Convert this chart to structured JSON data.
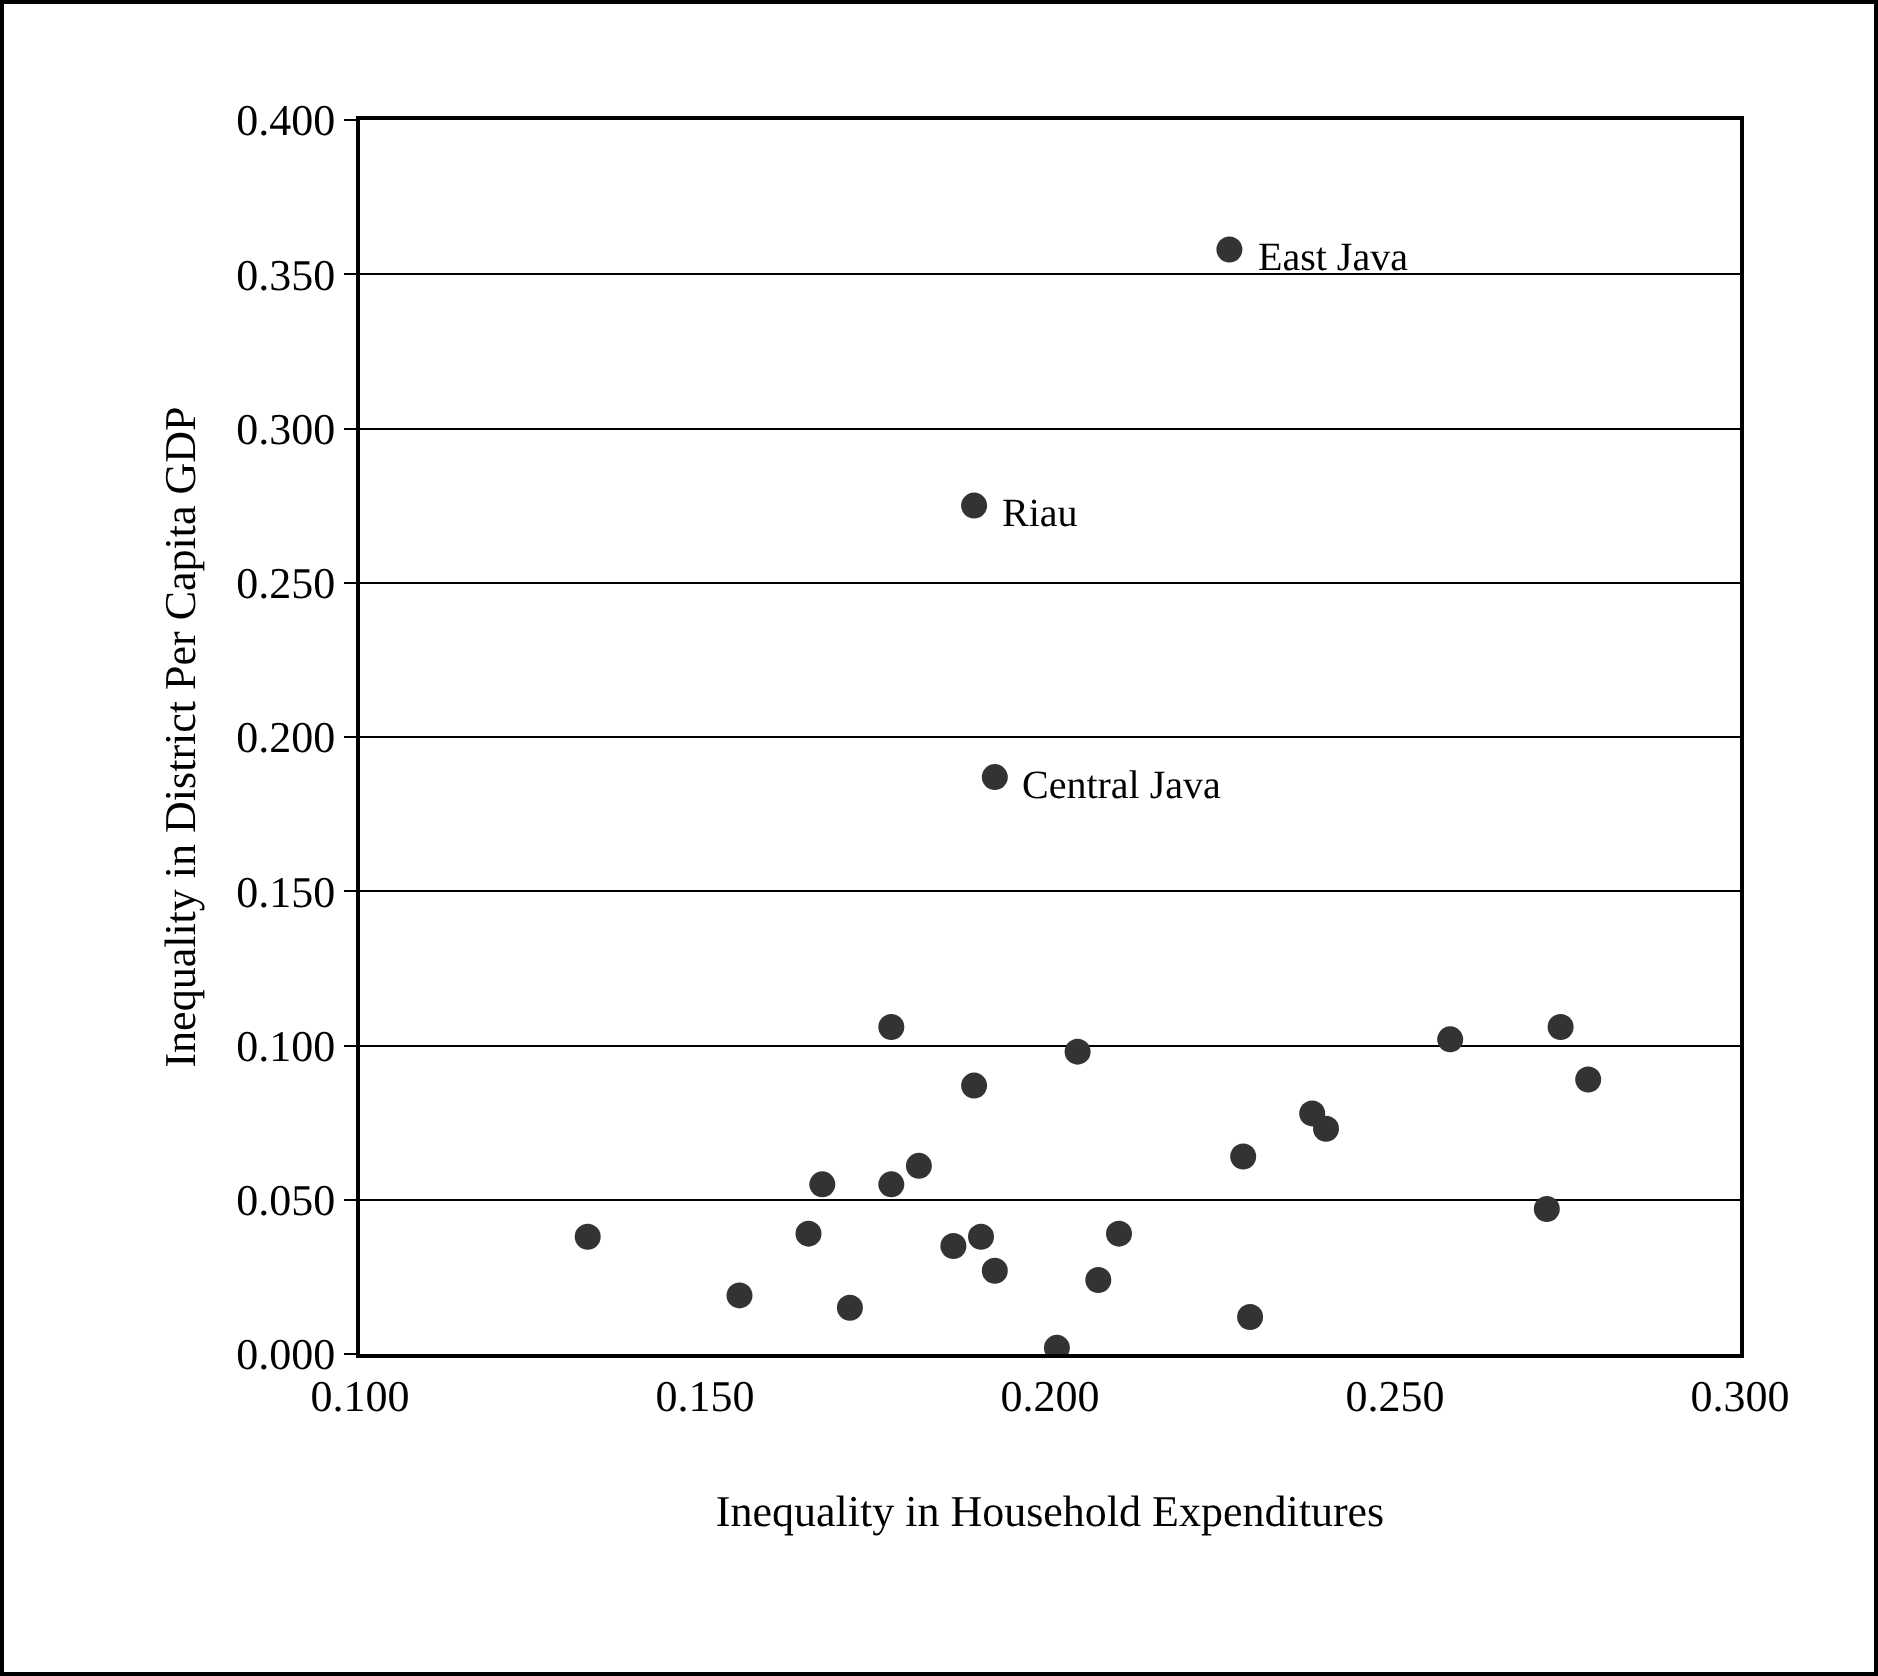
{
  "chart_data": {
    "type": "scatter",
    "xlabel": "Inequality in Household Expenditures",
    "ylabel": "Inequality in District Per Capita GDP",
    "x": [
      0.133,
      0.155,
      0.165,
      0.167,
      0.171,
      0.177,
      0.177,
      0.181,
      0.186,
      0.19,
      0.192,
      0.189,
      0.189,
      0.192,
      0.201,
      0.204,
      0.207,
      0.21,
      0.226,
      0.228,
      0.229,
      0.238,
      0.24,
      0.258,
      0.272,
      0.274,
      0.278
    ],
    "values": [
      0.038,
      0.019,
      0.039,
      0.055,
      0.015,
      0.055,
      0.106,
      0.061,
      0.035,
      0.038,
      0.027,
      0.087,
      0.275,
      0.187,
      0.002,
      0.098,
      0.024,
      0.039,
      0.358,
      0.064,
      0.012,
      0.078,
      0.073,
      0.102,
      0.047,
      0.106,
      0.089
    ],
    "color": "#333333",
    "marker": "circle",
    "xlim": [
      0.1,
      0.3
    ],
    "xticks": [
      {
        "value": 0.1,
        "label": "0.100"
      },
      {
        "value": 0.15,
        "label": "0.150"
      },
      {
        "value": 0.2,
        "label": "0.200"
      },
      {
        "value": 0.25,
        "label": "0.250"
      },
      {
        "value": 0.3,
        "label": "0.300"
      }
    ],
    "ylim": [
      0,
      0.4
    ],
    "yticks": [
      {
        "value": 0,
        "label": "0.000"
      },
      {
        "value": 0.05,
        "label": "0.050"
      },
      {
        "value": 0.1,
        "label": "0.100"
      },
      {
        "value": 0.15,
        "label": "0.150"
      },
      {
        "value": 0.2,
        "label": "0.200"
      },
      {
        "value": 0.25,
        "label": "0.250"
      },
      {
        "value": 0.3,
        "label": "0.300"
      },
      {
        "value": 0.35,
        "label": "0.350"
      },
      {
        "value": 0.4,
        "label": "0.400"
      }
    ],
    "grid": "y",
    "annotations": [
      {
        "text": "East Java",
        "x": 0.226,
        "y": 0.358
      },
      {
        "text": "Riau",
        "x": 0.189,
        "y": 0.275
      },
      {
        "text": "Central Java",
        "x": 0.192,
        "y": 0.187
      }
    ]
  }
}
